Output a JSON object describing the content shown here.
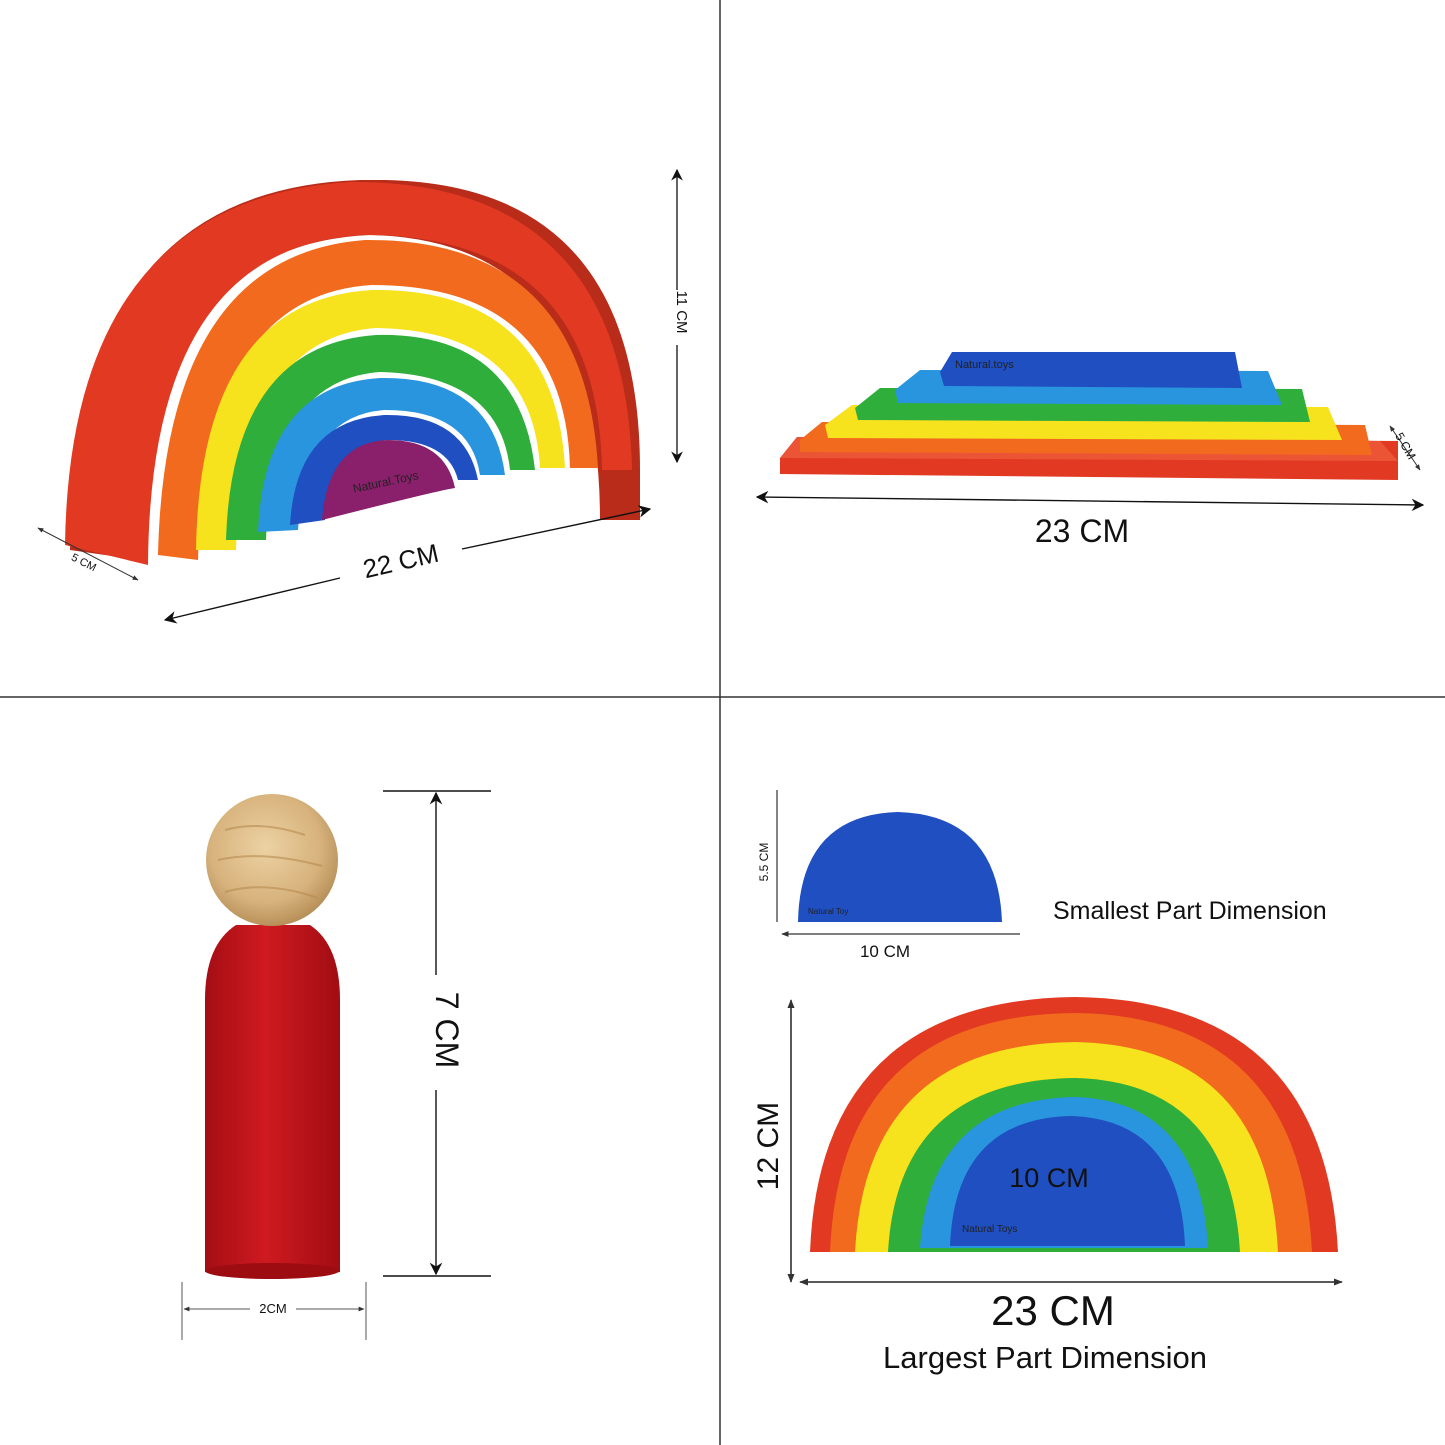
{
  "panels": {
    "top_left": {
      "height_label": "11 CM",
      "depth_label": "5 CM",
      "width_label": "22 CM",
      "brand_text": "Natural.Toys"
    },
    "top_right": {
      "width_label": "23 CM",
      "depth_label": "5 CM",
      "brand_text": "Natural.toys"
    },
    "bottom_left": {
      "height_label": "7 CM",
      "width_label": "2CM"
    },
    "bottom_right": {
      "small_height_label": "5.5 CM",
      "small_width_label": "10 CM",
      "small_caption": "Smallest Part Dimension",
      "small_brand_text": "Natural Toy",
      "large_height_label": "12 CM",
      "large_inner_label": "10 CM",
      "large_width_label": "23 CM",
      "large_caption": "Largest Part Dimension",
      "large_brand_text": "Natural Toys"
    }
  },
  "colors": {
    "red": "#e23a22",
    "orange": "#f26a1d",
    "yellow": "#f7e21e",
    "green": "#2fae3c",
    "light_blue": "#2a95df",
    "blue": "#1f4fc0",
    "purple": "#8a1f6b",
    "wood": "#d9b886",
    "peg_red": "#c0141a"
  }
}
